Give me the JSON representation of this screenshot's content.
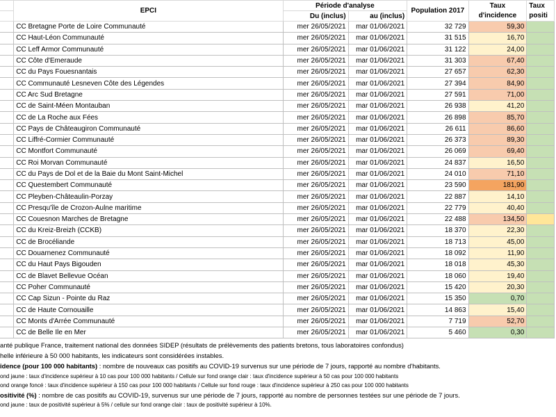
{
  "header": {
    "epci": "EPCI",
    "period": "Période d'analyse",
    "from": "Du (inclus)",
    "to": "au (inclus)",
    "population": "Population 2017",
    "incidence": "Taux d'incidence",
    "positivity": "Taux positi"
  },
  "table": {
    "rows": [
      [
        "CC Bretagne Porte de Loire Communauté",
        "mer 26/05/2021",
        "mar 01/06/2021",
        "32 729",
        "59,30"
      ],
      [
        "CC Haut-Léon Communauté",
        "mer 26/05/2021",
        "mar 01/06/2021",
        "31 515",
        "16,70"
      ],
      [
        "CC Leff Armor Communauté",
        "mer 26/05/2021",
        "mar 01/06/2021",
        "31 122",
        "24,00"
      ],
      [
        "CC Côte d'Emeraude",
        "mer 26/05/2021",
        "mar 01/06/2021",
        "31 303",
        "67,40"
      ],
      [
        "CC du Pays Fouesnantais",
        "mer 26/05/2021",
        "mar 01/06/2021",
        "27 657",
        "62,30"
      ],
      [
        "CC Communauté Lesneven Côte des Légendes",
        "mer 26/05/2021",
        "mar 01/06/2021",
        "27 394",
        "84,90"
      ],
      [
        "CC Arc Sud Bretagne",
        "mer 26/05/2021",
        "mar 01/06/2021",
        "27 591",
        "71,00"
      ],
      [
        "CC de Saint-Méen Montauban",
        "mer 26/05/2021",
        "mar 01/06/2021",
        "26 938",
        "41,20"
      ],
      [
        "CC de La Roche aux Fées",
        "mer 26/05/2021",
        "mar 01/06/2021",
        "26 898",
        "85,70"
      ],
      [
        "CC Pays de Châteaugiron Communauté",
        "mer 26/05/2021",
        "mar 01/06/2021",
        "26 611",
        "86,60"
      ],
      [
        "CC Liffré-Cormier Communauté",
        "mer 26/05/2021",
        "mar 01/06/2021",
        "26 373",
        "89,30"
      ],
      [
        "CC Montfort Communauté",
        "mer 26/05/2021",
        "mar 01/06/2021",
        "26 069",
        "69,40"
      ],
      [
        "CC Roi Morvan Communauté",
        "mer 26/05/2021",
        "mar 01/06/2021",
        "24 837",
        "16,50"
      ],
      [
        "CC du Pays de Dol et de la Baie du Mont Saint-Michel",
        "mer 26/05/2021",
        "mar 01/06/2021",
        "24 010",
        "71,10"
      ],
      [
        "CC Questembert Communauté",
        "mer 26/05/2021",
        "mar 01/06/2021",
        "23 590",
        "181,90"
      ],
      [
        "CC Pleyben-Châteaulin-Porzay",
        "mer 26/05/2021",
        "mar 01/06/2021",
        "22 887",
        "14,10"
      ],
      [
        "CC Presqu'île de Crozon-Aulne maritime",
        "mer 26/05/2021",
        "mar 01/06/2021",
        "22 779",
        "40,40"
      ],
      [
        "CC Couesnon Marches de Bretagne",
        "mer 26/05/2021",
        "mar 01/06/2021",
        "22 488",
        "134,50"
      ],
      [
        "CC du Kreiz-Breizh (CCKB)",
        "mer 26/05/2021",
        "mar 01/06/2021",
        "18 370",
        "22,30"
      ],
      [
        "CC de Brocéliande",
        "mer 26/05/2021",
        "mar 01/06/2021",
        "18 713",
        "45,00"
      ],
      [
        "CC Douarnenez Communauté",
        "mer 26/05/2021",
        "mar 01/06/2021",
        "18 092",
        "11,90"
      ],
      [
        "CC du Haut Pays Bigouden",
        "mer 26/05/2021",
        "mar 01/06/2021",
        "18 018",
        "45,30"
      ],
      [
        "CC de Blavet Bellevue Océan",
        "mer 26/05/2021",
        "mar 01/06/2021",
        "18 060",
        "19,40"
      ],
      [
        "CC Poher Communauté",
        "mer 26/05/2021",
        "mar 01/06/2021",
        "15 420",
        "20,30"
      ],
      [
        "CC Cap Sizun - Pointe du Raz",
        "mer 26/05/2021",
        "mar 01/06/2021",
        "15 350",
        "0,70"
      ],
      [
        "CC de Haute Cornouaille",
        "mer 26/05/2021",
        "mar 01/06/2021",
        "14 863",
        "15,40"
      ],
      [
        "CC Monts d'Arrée Communauté",
        "mer 26/05/2021",
        "mar 01/06/2021",
        "7 719",
        "52,70"
      ],
      [
        "CC de Belle Ile en Mer",
        "mer 26/05/2021",
        "mar 01/06/2021",
        "5 460",
        "0,30"
      ]
    ],
    "incidence_colors": [
      "#f8cbad",
      "#fff2cc",
      "#fff2cc",
      "#f8cbad",
      "#f8cbad",
      "#f8cbad",
      "#f8cbad",
      "#fff2cc",
      "#f8cbad",
      "#f8cbad",
      "#f8cbad",
      "#f8cbad",
      "#fff2cc",
      "#f8cbad",
      "#f4a460",
      "#fff2cc",
      "#fff2cc",
      "#f8cbad",
      "#fff2cc",
      "#fff2cc",
      "#fff2cc",
      "#fff2cc",
      "#fff2cc",
      "#fff2cc",
      "#c6e0b4",
      "#fff2cc",
      "#f8cbad",
      "#c6e0b4"
    ],
    "positivity_colors": [
      "#c6e0b4",
      "#c6e0b4",
      "#c6e0b4",
      "#c6e0b4",
      "#c6e0b4",
      "#c6e0b4",
      "#c6e0b4",
      "#c6e0b4",
      "#c6e0b4",
      "#c6e0b4",
      "#c6e0b4",
      "#c6e0b4",
      "#c6e0b4",
      "#c6e0b4",
      "#c6e0b4",
      "#c6e0b4",
      "#c6e0b4",
      "#ffe699",
      "#c6e0b4",
      "#c6e0b4",
      "#c6e0b4",
      "#c6e0b4",
      "#c6e0b4",
      "#c6e0b4",
      "#c6e0b4",
      "#c6e0b4",
      "#c6e0b4",
      "#c6e0b4"
    ]
  },
  "notes": [
    {
      "text": "anté publique France, traitement national des données SIDEP (résultats de prélèvements des patients bretons, tous laboratoires confondus)"
    },
    {
      "text": "helle inférieure à 50 000 habitants, les indicateurs sont considérées instables."
    },
    {
      "bold": "idence (pour 100 000 habitants)",
      "text": " : nombre de nouveaux cas positifs au COVID-19 survenus sur une période de 7 jours, rapporté au nombre d'habitants."
    },
    {
      "text": "ond jaune : taux d'incidence supérieur à 10 cas pour 100 000 habitants / Cellule sur fond orange clair : taux d'incidence supérieur à 50 cas pour 100 000 habitants",
      "small": true
    },
    {
      "text": "ond orange foncé : taux d'incidence supérieur à 150 cas pour 100 000 habitants / Cellule sur fond rouge : taux d'incidence supérieur à 250 cas pour 100 000 habitants",
      "small": true
    },
    {
      "bold": "ositivité (%)",
      "text": " : nombre de cas positifs au COVID-19, survenus sur une période de 7 jours, rapporté au nombre de personnes testées sur une période de 7 jours."
    },
    {
      "text": "ond jaune : taux de positivité supérieur à 5% / cellule sur fond orange clair : taux de positivité supérieur à 10%.",
      "small": true
    }
  ]
}
